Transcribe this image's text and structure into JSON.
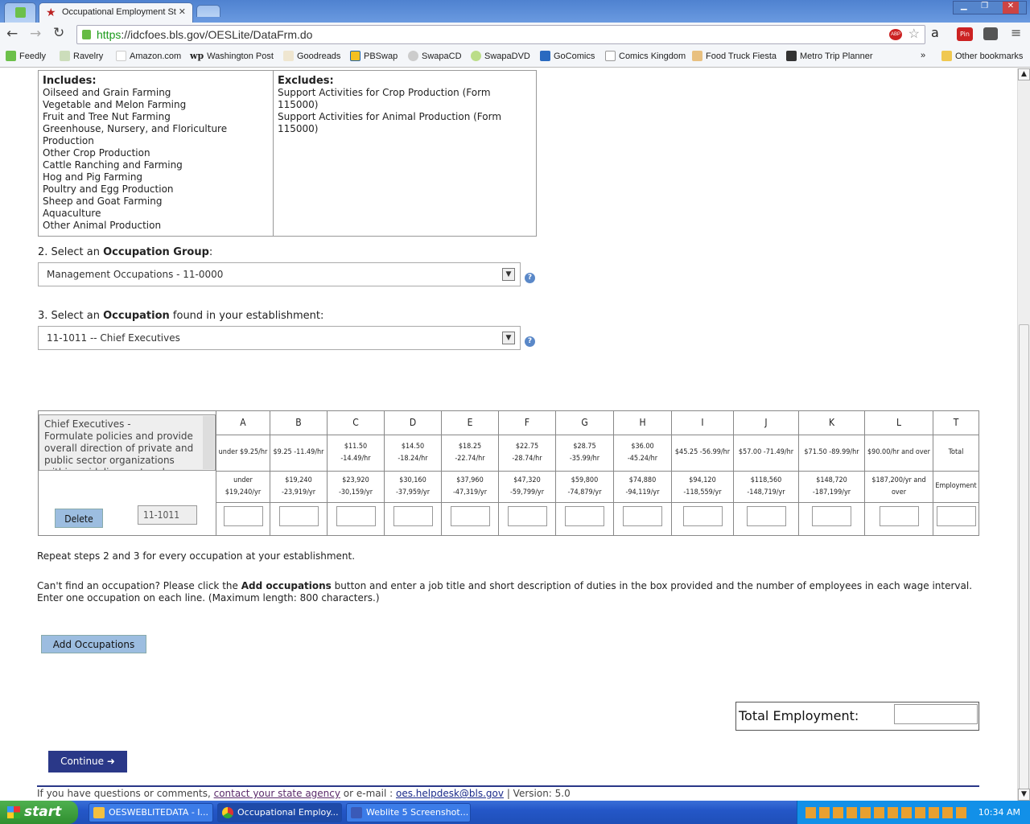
{
  "browser": {
    "tab_title": "Occupational Employment St",
    "url_scheme": "https",
    "url_rest": "://idcfoes.bls.gov/OESLite/DataFrm.do",
    "bookmarks": [
      "Feedly",
      "Ravelry",
      "Amazon.com",
      "Washington Post",
      "Goodreads",
      "PBSwap",
      "SwapaCD",
      "SwapaDVD",
      "GoComics",
      "Comics Kingdom",
      "Food Truck Fiesta",
      "Metro Trip Planner"
    ],
    "overflow": "»",
    "other_bookmarks": "Other bookmarks"
  },
  "industry": {
    "includes_title": "Includes:",
    "includes": [
      "Oilseed and Grain Farming",
      "Vegetable and Melon Farming",
      "Fruit and Tree Nut Farming",
      "Greenhouse, Nursery, and Floriculture Production",
      "Other Crop Production",
      "Cattle Ranching and Farming",
      "Hog and Pig Farming",
      "Poultry and Egg Production",
      "Sheep and Goat Farming",
      "Aquaculture",
      "Other Animal Production"
    ],
    "excludes_title": "Excludes:",
    "excludes": [
      "Support Activities for Crop Production (Form 115000)",
      "Support Activities for Animal Production (Form 115000)"
    ]
  },
  "step2": {
    "prefix": "2. Select an ",
    "bold": "Occupation Group",
    "suffix": ":",
    "value": "Management Occupations - 11-0000"
  },
  "step3": {
    "prefix": "3.  Select an ",
    "bold": "Occupation",
    "suffix": " found in your establishment:",
    "value": "11-1011 -- Chief Executives"
  },
  "occupation": {
    "description": "Chief Executives -\nFormulate policies and provide overall direction of private and public sector organizations within guidelines set up by",
    "code": "11-1011",
    "delete_label": "Delete"
  },
  "wage_table": {
    "columns": [
      {
        "letter": "A",
        "hourly": "under $9.25/hr",
        "annual": "under $19,240/yr"
      },
      {
        "letter": "B",
        "hourly": "$9.25 -11.49/hr",
        "annual": "$19,240 -23,919/yr"
      },
      {
        "letter": "C",
        "hourly": "$11.50 -14.49/hr",
        "annual": "$23,920 -30,159/yr"
      },
      {
        "letter": "D",
        "hourly": "$14.50 -18.24/hr",
        "annual": "$30,160 -37,959/yr"
      },
      {
        "letter": "E",
        "hourly": "$18.25 -22.74/hr",
        "annual": "$37,960 -47,319/yr"
      },
      {
        "letter": "F",
        "hourly": "$22.75 -28.74/hr",
        "annual": "$47,320 -59,799/yr"
      },
      {
        "letter": "G",
        "hourly": "$28.75 -35.99/hr",
        "annual": "$59,800 -74,879/yr"
      },
      {
        "letter": "H",
        "hourly": "$36.00 -45.24/hr",
        "annual": "$74,880 -94,119/yr"
      },
      {
        "letter": "I",
        "hourly": "$45.25 -56.99/hr",
        "annual": "$94,120 -118,559/yr"
      },
      {
        "letter": "J",
        "hourly": "$57.00 -71.49/hr",
        "annual": "$118,560 -148,719/yr"
      },
      {
        "letter": "K",
        "hourly": "$71.50 -89.99/hr",
        "annual": "$148,720 -187,199/yr"
      },
      {
        "letter": "L",
        "hourly": "$90.00/hr and over",
        "annual": "$187,200/yr and over"
      },
      {
        "letter": "T",
        "hourly": "Total",
        "annual": "Employment"
      }
    ]
  },
  "repeat_text": "Repeat steps 2 and 3 for every occupation at your establishment.",
  "cant_find": {
    "prefix": "Can't find an occupation? Please click the ",
    "bold": "Add occupations",
    "suffix": " button and enter a job title and short description of duties in the box provided and the number of employees in each wage interval. Enter one occupation on each line. (Maximum length: 800 characters.)"
  },
  "add_occupations_label": "Add Occupations",
  "total_employment_label": "Total Employment:",
  "continue_label": "Continue ➜",
  "footer": {
    "prefix": "If you have questions or comments, ",
    "link1": "contact your state agency",
    "middle": " or e-mail : ",
    "link2": "oes.helpdesk@bls.gov",
    "version": " | Version: 5.0"
  },
  "taskbar": {
    "start": "start",
    "tasks": [
      "OESWEBLITEDATA - I...",
      "Occupational Employ...",
      "Weblite 5 Screenshot..."
    ],
    "clock": "10:34 AM"
  }
}
